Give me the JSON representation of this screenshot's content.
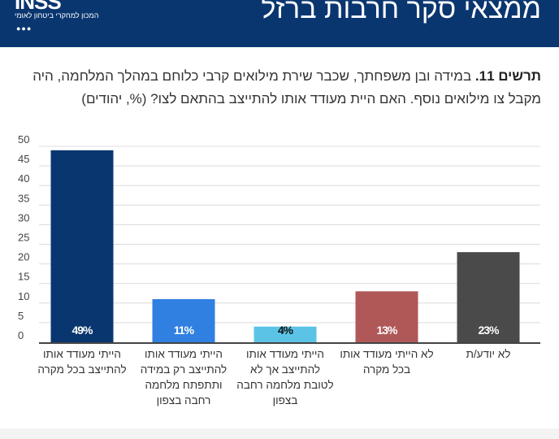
{
  "header": {
    "title": "ממצאי סקר חרבות ברזל",
    "logo_text": "INSS",
    "logo_subtitle": "המכון למחקרי ביטחון לאומי"
  },
  "question": {
    "label": "תרשים 11.",
    "text": " במידה ובן משפחתך, שכבר שירת מילואים קרבי כלוחם במהלך המלחמה, היה מקבל צו מילואים נוסף. האם היית מעודד אותו להתייצב בהתאם לצו? (%, יהודים)"
  },
  "chart_data": {
    "type": "bar",
    "categories": [
      "הייתי מעודד אותו להתייצב בכל מקרה",
      "הייתי מעודד אותו להתייצב רק במידה ותתפתח מלחמה רחבה בצפון",
      "הייתי מעודד אותו להתייצב אך לא לטובת מלחמה רחבה בצפון",
      "לא הייתי מעודד אותו בכל מקרה",
      "לא יודע/ת"
    ],
    "values": [
      49,
      11,
      4,
      13,
      23
    ],
    "data_labels": [
      "49%",
      "11%",
      "4%",
      "13%",
      "23%"
    ],
    "colors": [
      "#0a3670",
      "#2f80e0",
      "#5bc4e6",
      "#b05858",
      "#4a4a4a"
    ],
    "label_colors": [
      "#fff",
      "#fff",
      "#111",
      "#fff",
      "#fff"
    ],
    "ylim": [
      0,
      50
    ],
    "yticks": [
      0,
      5,
      10,
      15,
      20,
      25,
      30,
      35,
      40,
      45,
      50
    ],
    "grid": true
  }
}
